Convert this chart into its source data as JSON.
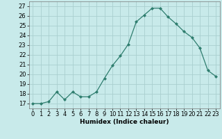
{
  "x": [
    0,
    1,
    2,
    3,
    4,
    5,
    6,
    7,
    8,
    9,
    10,
    11,
    12,
    13,
    14,
    15,
    16,
    17,
    18,
    19,
    20,
    21,
    22,
    23
  ],
  "y": [
    17.0,
    17.0,
    17.2,
    18.2,
    17.4,
    18.2,
    17.7,
    17.7,
    18.2,
    19.6,
    20.9,
    21.9,
    23.1,
    25.4,
    26.1,
    26.8,
    26.8,
    25.9,
    25.2,
    24.4,
    23.8,
    22.7,
    20.4,
    19.8
  ],
  "line_color": "#2e7d6e",
  "marker_color": "#2e7d6e",
  "bg_color": "#c8eaea",
  "grid_color": "#aacfcf",
  "xlabel": "Humidex (Indice chaleur)",
  "xlabel_fontsize": 6.5,
  "ylabel_ticks": [
    17,
    18,
    19,
    20,
    21,
    22,
    23,
    24,
    25,
    26,
    27
  ],
  "xlim": [
    -0.5,
    23.5
  ],
  "ylim": [
    16.5,
    27.5
  ],
  "tick_fontsize": 6.0
}
